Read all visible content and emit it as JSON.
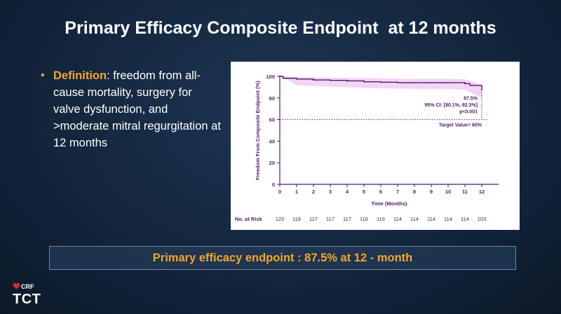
{
  "slide": {
    "title": "Primary Efficacy Composite Endpoint  at 12 months",
    "definition": {
      "term": "Definition",
      "text": ": freedom from all-cause mortality, surgery for valve dysfunction, and >moderate mitral regurgitation at 12 months"
    },
    "banner": "Primary efficacy endpoint : 87.5% at 12 - month",
    "logo": {
      "top": "CRF",
      "bottom": "TCT"
    }
  },
  "chart_data": {
    "type": "line",
    "title": "",
    "xlabel": "Time (Months)",
    "ylabel": "Freedom From Composite Endpoint (%)",
    "xlim": [
      0,
      13
    ],
    "ylim": [
      0,
      100
    ],
    "x_ticks": [
      "0",
      "1",
      "2",
      "3",
      "4",
      "5",
      "6",
      "7",
      "8",
      "9",
      "10",
      "11",
      "12"
    ],
    "y_ticks": [
      "0",
      "20",
      "40",
      "60",
      "80",
      "100"
    ],
    "series": [
      {
        "x": [
          0,
          0.2,
          1,
          2,
          3,
          4,
          5,
          6,
          7,
          8,
          9,
          10,
          11,
          11.3,
          12
        ],
        "y": [
          100,
          98.3,
          97.5,
          96.7,
          96.3,
          95.8,
          95.0,
          94.6,
          94.2,
          94.2,
          94.2,
          94.2,
          93.3,
          91.7,
          87.5
        ]
      }
    ],
    "ci_band": {
      "x": [
        0,
        1,
        2,
        4,
        6,
        8,
        10,
        11,
        12
      ],
      "upper": [
        100,
        99.5,
        99.2,
        98.8,
        98.2,
        97.8,
        97.8,
        97.3,
        92.3
      ],
      "lower": [
        100,
        92.0,
        91.0,
        90.0,
        89.0,
        88.5,
        88.5,
        87.5,
        80.1
      ]
    },
    "target_line": {
      "value": 60,
      "label": "Target Value= 60%"
    },
    "annotations": [
      "87.5%",
      "95% CI: [80.1%, 92.3%]",
      "p<0.001"
    ],
    "at_risk": {
      "label": "No. at Risk",
      "values": [
        "120",
        "118",
        "117",
        "117",
        "117",
        "116",
        "116",
        "114",
        "114",
        "114",
        "114",
        "114",
        "103"
      ]
    },
    "colors": {
      "line": "#4b1f63",
      "band": "#f4d4f7",
      "target": "#4b1f63",
      "text": "#4b1f63"
    }
  }
}
